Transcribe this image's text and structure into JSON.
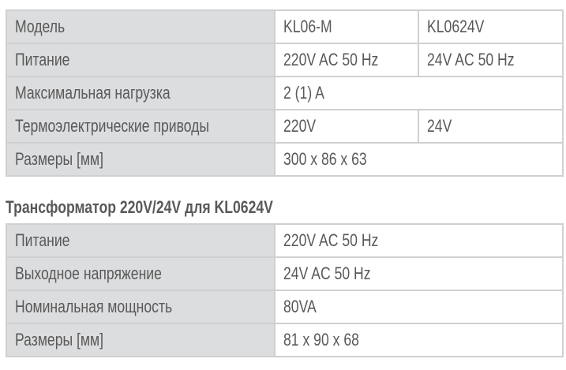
{
  "spec_table": {
    "rows": [
      {
        "label": "Модель",
        "v1": "KL06-M",
        "v2": "KL0624V"
      },
      {
        "label": "Питание",
        "v1": "220V AC 50 Hz",
        "v2": "24V AC 50 Hz"
      },
      {
        "label": "Максимальная нагрузка",
        "v1": "2 (1) A"
      },
      {
        "label": "Термоэлектрические приводы",
        "v1": "220V",
        "v2": "24V"
      },
      {
        "label": "Размеры [мм]",
        "v1": "300 x 86 x 63"
      }
    ]
  },
  "transformer": {
    "title": "Трансформатор 220V/24V для KL0624V",
    "rows": [
      {
        "label": "Питание",
        "value": "220V AC 50 Hz"
      },
      {
        "label": "Выходное напряжение",
        "value": "24V AC 50 Hz"
      },
      {
        "label": "Номинальная мощность",
        "value": "80VA"
      },
      {
        "label": "Размеры [мм]",
        "value": "81 x 90 x 68"
      }
    ]
  }
}
